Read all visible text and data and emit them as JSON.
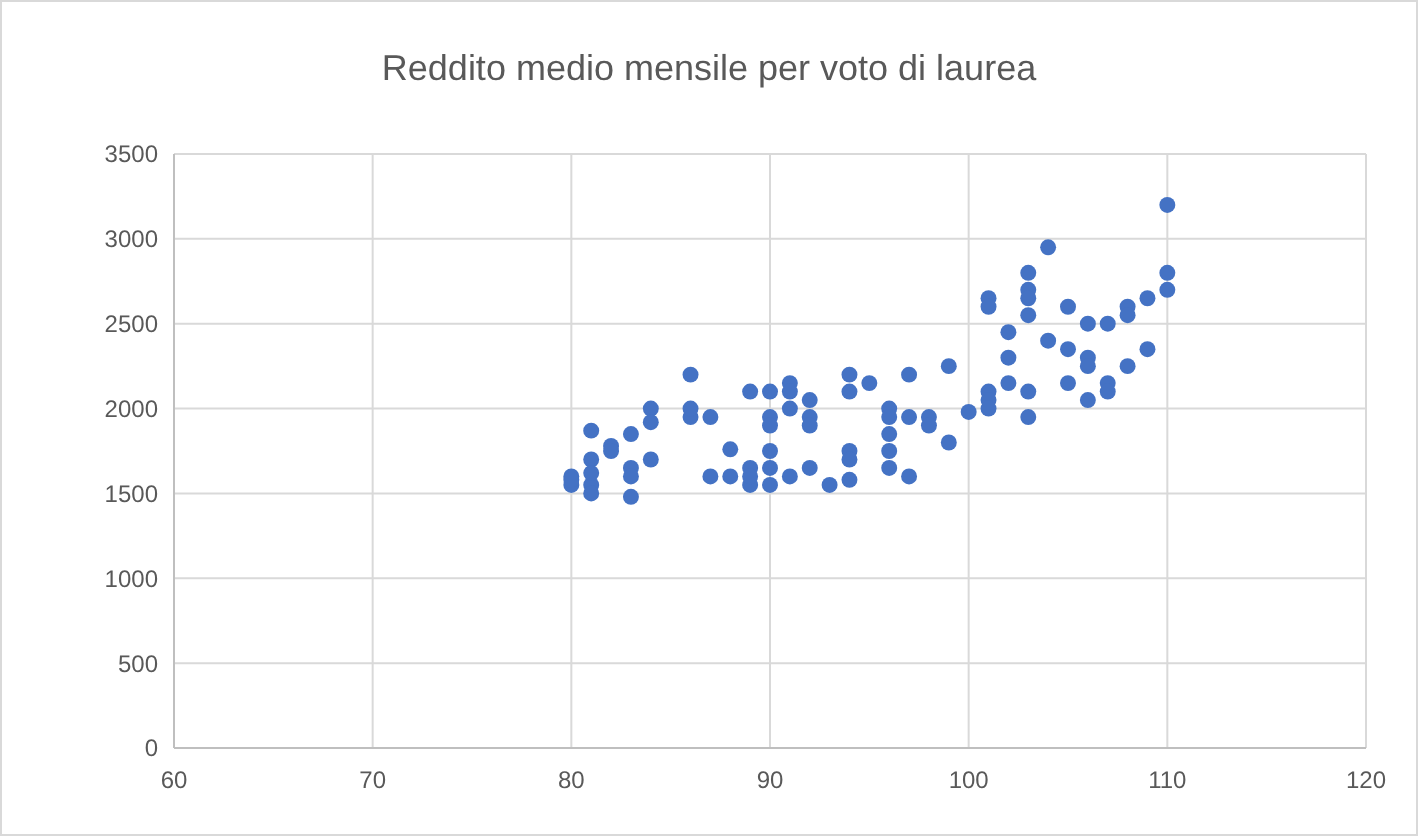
{
  "chart_data": {
    "type": "scatter",
    "title": "Reddito medio mensile per voto di laurea",
    "x": [
      80,
      80,
      80,
      81,
      81,
      81,
      81,
      81,
      82,
      82,
      83,
      83,
      83,
      83,
      84,
      84,
      84,
      86,
      86,
      86,
      87,
      87,
      88,
      88,
      89,
      89,
      89,
      89,
      90,
      90,
      90,
      90,
      90,
      90,
      91,
      91,
      91,
      91,
      92,
      92,
      92,
      92,
      93,
      94,
      94,
      94,
      94,
      94,
      95,
      96,
      96,
      96,
      96,
      96,
      97,
      97,
      97,
      98,
      98,
      99,
      99,
      100,
      101,
      101,
      101,
      101,
      101,
      102,
      102,
      102,
      103,
      103,
      103,
      103,
      103,
      103,
      104,
      104,
      105,
      105,
      105,
      106,
      106,
      106,
      106,
      107,
      107,
      107,
      108,
      108,
      108,
      109,
      109,
      110,
      110,
      110
    ],
    "values": [
      1600,
      1550,
      1580,
      1870,
      1700,
      1550,
      1500,
      1620,
      1780,
      1750,
      1850,
      1650,
      1480,
      1600,
      2000,
      1920,
      1700,
      2200,
      1950,
      2000,
      1600,
      1950,
      1600,
      1760,
      2100,
      1650,
      1550,
      1600,
      2100,
      1950,
      1900,
      1750,
      1650,
      1550,
      2150,
      2100,
      2000,
      1600,
      2050,
      1950,
      1900,
      1650,
      1550,
      2200,
      2100,
      1750,
      1700,
      1580,
      2150,
      2000,
      1950,
      1850,
      1750,
      1650,
      2200,
      1950,
      1600,
      1950,
      1900,
      2250,
      1800,
      1980,
      2650,
      2600,
      2100,
      2050,
      2000,
      2450,
      2300,
      2150,
      2800,
      2700,
      2650,
      2550,
      2100,
      1950,
      2950,
      2400,
      2600,
      2350,
      2150,
      2500,
      2300,
      2250,
      2050,
      2500,
      2150,
      2100,
      2600,
      2550,
      2250,
      2650,
      2350,
      3200,
      2800,
      2700
    ],
    "color": "#4472c4",
    "marker": "circle",
    "xlim": [
      60,
      120
    ],
    "xticks": [
      60,
      70,
      80,
      90,
      100,
      110,
      120
    ],
    "ylim": [
      0,
      3500
    ],
    "yticks": [
      0,
      500,
      1000,
      1500,
      2000,
      2500,
      3000,
      3500
    ],
    "grid": true
  }
}
